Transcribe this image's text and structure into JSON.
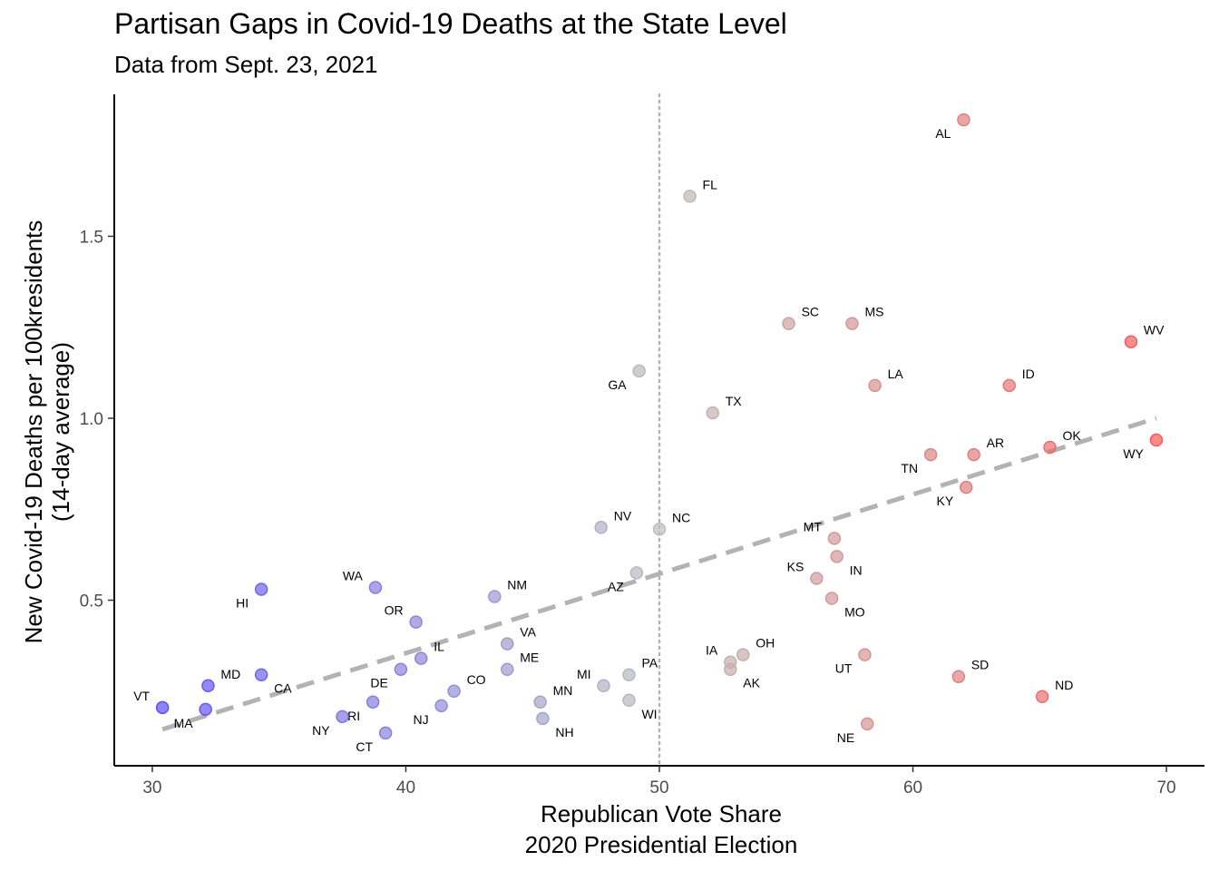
{
  "title": "Partisan Gaps in Covid-19 Deaths at the State Level",
  "subtitle": "Data from Sept. 23, 2021",
  "chart_data": {
    "type": "scatter",
    "xlabel": [
      "Republican Vote Share",
      "2020 Presidential Election"
    ],
    "ylabel": [
      "New Covid-19 Deaths per 100kresidents",
      "(14-day average)"
    ],
    "xlim": [
      28.5,
      71.5
    ],
    "ylim": [
      0.045,
      1.89
    ],
    "x_ticks": [
      30,
      40,
      50,
      60,
      70
    ],
    "y_ticks": [
      0.5,
      1.0,
      1.5
    ],
    "y_tick_labels": [
      "0.5",
      "1.0",
      "1.5"
    ],
    "grid": false,
    "reference_line": {
      "x": 50,
      "style": "dotted",
      "color": "#b3b3b3"
    },
    "trend_line": {
      "start": [
        30.4,
        0.145
      ],
      "end": [
        69.6,
        1.0
      ],
      "style": "dashed",
      "color": "#b3b3b3"
    },
    "colors": {
      "dem": "#5c4dfa",
      "neutral": "#bdbdbd",
      "rep": "#f95757"
    },
    "points": [
      {
        "state": "AL",
        "x": 62.0,
        "y": 1.82,
        "label_pos": "bl"
      },
      {
        "state": "FL",
        "x": 51.2,
        "y": 1.61,
        "label_pos": "tr"
      },
      {
        "state": "SC",
        "x": 55.1,
        "y": 1.26,
        "label_pos": "tr"
      },
      {
        "state": "MS",
        "x": 57.6,
        "y": 1.26,
        "label_pos": "tr"
      },
      {
        "state": "WV",
        "x": 68.6,
        "y": 1.21,
        "label_pos": "tr"
      },
      {
        "state": "GA",
        "x": 49.2,
        "y": 1.13,
        "label_pos": "bl"
      },
      {
        "state": "LA",
        "x": 58.5,
        "y": 1.09,
        "label_pos": "tr"
      },
      {
        "state": "ID",
        "x": 63.8,
        "y": 1.09,
        "label_pos": "tr"
      },
      {
        "state": "TX",
        "x": 52.1,
        "y": 1.015,
        "label_pos": "tr"
      },
      {
        "state": "WY",
        "x": 69.6,
        "y": 0.94,
        "label_pos": "bl"
      },
      {
        "state": "OK",
        "x": 65.4,
        "y": 0.92,
        "label_pos": "tr"
      },
      {
        "state": "AR",
        "x": 62.4,
        "y": 0.9,
        "label_pos": "tr"
      },
      {
        "state": "TN",
        "x": 60.7,
        "y": 0.9,
        "label_pos": "bl"
      },
      {
        "state": "KY",
        "x": 62.1,
        "y": 0.81,
        "label_pos": "bl"
      },
      {
        "state": "NV",
        "x": 47.7,
        "y": 0.7,
        "label_pos": "tr"
      },
      {
        "state": "NC",
        "x": 50.0,
        "y": 0.695,
        "label_pos": "tr"
      },
      {
        "state": "MT",
        "x": 56.9,
        "y": 0.67,
        "label_pos": "tl"
      },
      {
        "state": "IN",
        "x": 57.0,
        "y": 0.62,
        "label_pos": "br"
      },
      {
        "state": "AZ",
        "x": 49.1,
        "y": 0.575,
        "label_pos": "bl"
      },
      {
        "state": "KS",
        "x": 56.2,
        "y": 0.56,
        "label_pos": "tl"
      },
      {
        "state": "HI",
        "x": 34.3,
        "y": 0.53,
        "label_pos": "bl"
      },
      {
        "state": "WA",
        "x": 38.8,
        "y": 0.535,
        "label_pos": "tl"
      },
      {
        "state": "NM",
        "x": 43.5,
        "y": 0.51,
        "label_pos": "tr"
      },
      {
        "state": "MO",
        "x": 56.8,
        "y": 0.505,
        "label_pos": "br"
      },
      {
        "state": "OR",
        "x": 40.4,
        "y": 0.44,
        "label_pos": "tl"
      },
      {
        "state": "VA",
        "x": 44.0,
        "y": 0.38,
        "label_pos": "tr"
      },
      {
        "state": "IL",
        "x": 40.6,
        "y": 0.34,
        "label_pos": "tr"
      },
      {
        "state": "ME",
        "x": 44.0,
        "y": 0.31,
        "label_pos": "tr"
      },
      {
        "state": "OH",
        "x": 53.3,
        "y": 0.35,
        "label_pos": "tr"
      },
      {
        "state": "IA",
        "x": 52.8,
        "y": 0.33,
        "label_pos": "tl"
      },
      {
        "state": "AK",
        "x": 52.8,
        "y": 0.31,
        "label_pos": "br"
      },
      {
        "state": "UT",
        "x": 58.1,
        "y": 0.35,
        "label_pos": "bl"
      },
      {
        "state": "MD",
        "x": 32.2,
        "y": 0.265,
        "label_pos": "tr"
      },
      {
        "state": "CA",
        "x": 34.3,
        "y": 0.295,
        "label_pos": "br"
      },
      {
        "state": "DE",
        "x": 39.8,
        "y": 0.31,
        "label_pos": "bl"
      },
      {
        "state": "CO",
        "x": 41.9,
        "y": 0.25,
        "label_pos": "tr"
      },
      {
        "state": "PA",
        "x": 48.8,
        "y": 0.295,
        "label_pos": "tr"
      },
      {
        "state": "MI",
        "x": 47.8,
        "y": 0.265,
        "label_pos": "tl"
      },
      {
        "state": "SD",
        "x": 61.8,
        "y": 0.29,
        "label_pos": "tr"
      },
      {
        "state": "MN",
        "x": 45.3,
        "y": 0.22,
        "label_pos": "tr"
      },
      {
        "state": "WI",
        "x": 48.8,
        "y": 0.225,
        "label_pos": "br"
      },
      {
        "state": "ND",
        "x": 65.1,
        "y": 0.235,
        "label_pos": "tr"
      },
      {
        "state": "VT",
        "x": 30.4,
        "y": 0.205,
        "label_pos": "tl"
      },
      {
        "state": "MA",
        "x": 32.1,
        "y": 0.2,
        "label_pos": "bl"
      },
      {
        "state": "NJ",
        "x": 41.4,
        "y": 0.21,
        "label_pos": "bl"
      },
      {
        "state": "RI",
        "x": 38.7,
        "y": 0.22,
        "label_pos": "bl"
      },
      {
        "state": "NY",
        "x": 37.5,
        "y": 0.18,
        "label_pos": "bl"
      },
      {
        "state": "NH",
        "x": 45.4,
        "y": 0.175,
        "label_pos": "br"
      },
      {
        "state": "NE",
        "x": 58.2,
        "y": 0.16,
        "label_pos": "bl"
      },
      {
        "state": "CT",
        "x": 39.2,
        "y": 0.135,
        "label_pos": "bl"
      }
    ]
  }
}
